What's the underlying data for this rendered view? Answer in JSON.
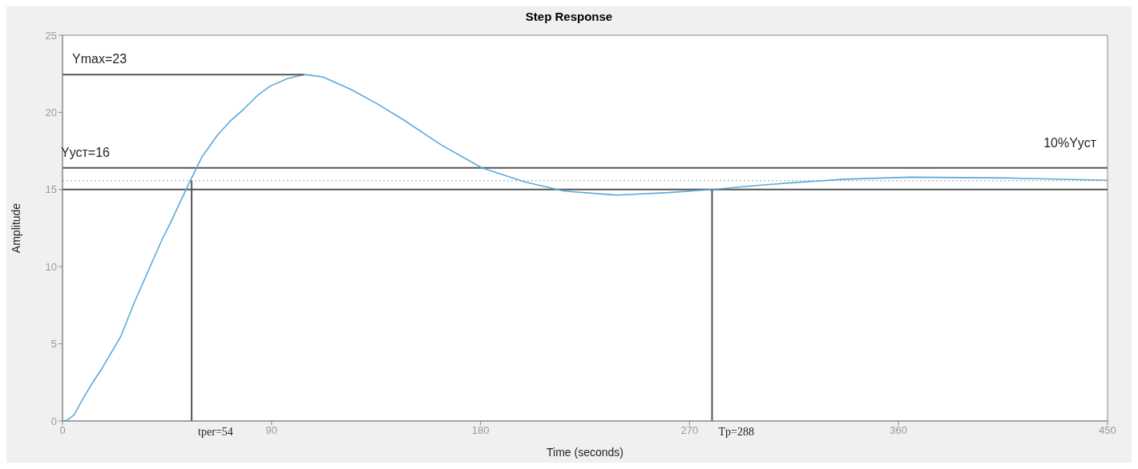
{
  "chart_data": {
    "type": "line",
    "title": "Step Response",
    "xlabel": "Time (seconds)",
    "ylabel": "Amplitude",
    "xlim": [
      0,
      450
    ],
    "xticks": [
      0,
      90,
      180,
      270,
      360,
      450
    ],
    "ylim": [
      0,
      25
    ],
    "yticks": [
      0,
      5,
      10,
      15,
      20,
      25
    ],
    "series": [
      {
        "color": "#5aa9dc",
        "x": [
          0,
          2,
          5,
          9,
          13,
          17,
          25,
          31,
          37.7,
          43,
          47,
          51,
          55,
          60,
          66.6,
          72,
          78,
          84,
          89.4,
          97,
          104,
          112,
          124,
          135,
          147,
          163,
          180.6,
          199,
          216,
          238.6,
          261,
          279.7,
          302,
          320,
          337,
          365,
          406,
          450
        ],
        "values": [
          0,
          0.05,
          0.4,
          1.5,
          2.5,
          3.4,
          5.45,
          7.7,
          10,
          11.8,
          13,
          14.3,
          15.57,
          17.1,
          18.5,
          19.4,
          20.2,
          21.1,
          21.7,
          22.2,
          22.45,
          22.3,
          21.5,
          20.6,
          19.5,
          17.9,
          16.4,
          15.5,
          14.9,
          14.64,
          14.8,
          15,
          15.3,
          15.5,
          15.67,
          15.8,
          15.75,
          15.6
        ]
      },
      {
        "color": "#555555",
        "x": [
          0,
          104
        ],
        "values": [
          22.45,
          22.45
        ]
      },
      {
        "color": "#555555",
        "x": [
          55.6,
          55.6
        ],
        "values": [
          0,
          15.57
        ]
      },
      {
        "color": "#555555",
        "x": [
          279.7,
          279.7
        ],
        "values": [
          0,
          15
        ]
      }
    ],
    "ref_lines": [
      {
        "axis": "y",
        "value": 16.4,
        "color": "#555555",
        "line_style": "solid"
      },
      {
        "axis": "y",
        "value": 15.57,
        "color": "#999999",
        "line_style": "dotted"
      },
      {
        "axis": "y",
        "value": 15,
        "color": "#555555",
        "line_style": "solid"
      }
    ],
    "annotations": [
      {
        "text": "Ymax=23",
        "x": 0,
        "y": 22.45
      },
      {
        "text": "Yуст=16",
        "x": 0,
        "y": 16.4
      },
      {
        "text": "10%Yуст",
        "x": 450,
        "y": 16.4
      },
      {
        "text": "tper=54",
        "x": 55.6,
        "y": 0
      },
      {
        "text": "Tp=288",
        "x": 279.7,
        "y": 0
      }
    ]
  }
}
